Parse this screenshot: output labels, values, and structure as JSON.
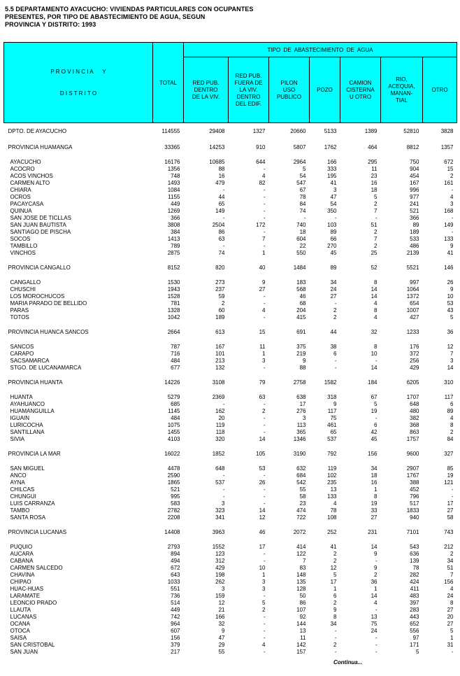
{
  "page": {
    "title_line1": "5.5   DEPARTAMENTO AYACUCHO: VIVIENDAS PARTICULARES CON OCUPANTES",
    "title_line2": "PRESENTES, POR TIPO DE ABASTECIMIENTO DE AGUA, SEGUN",
    "title_line3": "PROVINCIA Y DISTRITO: 1993",
    "continuation_note": "Continua..."
  },
  "table": {
    "header_bg_color": "#00FFFF",
    "header": {
      "row_label_line1": "P R O V I N C I A      Y",
      "row_label_line2": "D I S T R I T O",
      "total_label": "TOTAL",
      "group_label": "TIPO  DE  ABASTECIMIENTO  DE  AGUA",
      "cols": [
        "RED PUB.\nDENTRO\nDE LA VIV.",
        "RED PUB.\nFUERA DE\nLA VIV.\nDENTRO\nDEL EDIF.",
        "PILON\nUSO\nPUBLICO",
        "POZO",
        "CAMION\nCISTERNA\nU OTRO",
        "RIO,\nACEQUIA,\nMANAN-\nTIAL",
        "OTRO"
      ]
    },
    "rows": [
      {
        "type": "dept",
        "label": "DPTO. DE AYACUCHO",
        "values": [
          "114555",
          "29408",
          "1327",
          "20660",
          "5133",
          "1389",
          "52810",
          "3828"
        ]
      },
      {
        "type": "prov",
        "label": "PROVINCIA HUAMANGA",
        "values": [
          "33365",
          "14253",
          "910",
          "5807",
          "1762",
          "464",
          "8812",
          "1357"
        ]
      },
      {
        "type": "dist",
        "label": "AYACUCHO",
        "values": [
          "16176",
          "10685",
          "644",
          "2964",
          "166",
          "295",
          "750",
          "672"
        ]
      },
      {
        "type": "dist",
        "label": "ACOCRO",
        "values": [
          "1356",
          "88",
          "-",
          "5",
          "333",
          "11",
          "904",
          "15"
        ]
      },
      {
        "type": "dist",
        "label": "ACOS VINCHOS",
        "values": [
          "748",
          "16",
          "4",
          "54",
          "195",
          "23",
          "454",
          "2"
        ]
      },
      {
        "type": "dist",
        "label": "CARMEN ALTO",
        "values": [
          "1493",
          "479",
          "82",
          "547",
          "41",
          "16",
          "167",
          "161"
        ]
      },
      {
        "type": "dist",
        "label": "CHIARA",
        "values": [
          "1084",
          "-",
          "-",
          "67",
          "3",
          "18",
          "996",
          "-"
        ]
      },
      {
        "type": "dist",
        "label": "OCROS",
        "values": [
          "1155",
          "44",
          "-",
          "78",
          "47",
          "5",
          "977",
          "4"
        ]
      },
      {
        "type": "dist",
        "label": "PACAYCASA",
        "values": [
          "449",
          "65",
          "-",
          "84",
          "54",
          "2",
          "241",
          "3"
        ]
      },
      {
        "type": "dist",
        "label": "QUINUA",
        "values": [
          "1269",
          "149",
          "-",
          "74",
          "350",
          "7",
          "521",
          "168"
        ]
      },
      {
        "type": "dist",
        "label": "SAN JOSE DE TICLLAS",
        "values": [
          "366",
          "-",
          "-",
          "-",
          "-",
          "-",
          "366",
          "-"
        ]
      },
      {
        "type": "dist",
        "label": "SAN JUAN BAUTISTA",
        "values": [
          "3808",
          "2504",
          "172",
          "740",
          "103",
          "51",
          "89",
          "149"
        ]
      },
      {
        "type": "dist",
        "label": "SANTIAGO DE PISCHA",
        "values": [
          "384",
          "86",
          "-",
          "18",
          "89",
          "2",
          "189",
          "-"
        ]
      },
      {
        "type": "dist",
        "label": "SOCOS",
        "values": [
          "1413",
          "63",
          "7",
          "604",
          "66",
          "7",
          "533",
          "133"
        ]
      },
      {
        "type": "dist",
        "label": "TAMBILLO",
        "values": [
          "789",
          "-",
          "-",
          "22",
          "270",
          "2",
          "486",
          "9"
        ]
      },
      {
        "type": "dist",
        "label": "VINCHOS",
        "values": [
          "2875",
          "74",
          "1",
          "550",
          "45",
          "25",
          "2139",
          "41"
        ]
      },
      {
        "type": "prov",
        "label": "PROVINCIA CANGALLO",
        "values": [
          "8152",
          "820",
          "40",
          "1484",
          "89",
          "52",
          "5521",
          "146"
        ]
      },
      {
        "type": "dist",
        "label": "CANGALLO",
        "values": [
          "1530",
          "273",
          "9",
          "183",
          "34",
          "8",
          "997",
          "26"
        ]
      },
      {
        "type": "dist",
        "label": "CHUSCHI",
        "values": [
          "1943",
          "237",
          "27",
          "568",
          "24",
          "14",
          "1064",
          "9"
        ]
      },
      {
        "type": "dist",
        "label": "LOS MOROCHUCOS",
        "values": [
          "1528",
          "59",
          "-",
          "46",
          "27",
          "14",
          "1372",
          "10"
        ]
      },
      {
        "type": "dist",
        "label": "MARIA PARADO DE BELLIDO",
        "values": [
          "781",
          "2",
          "-",
          "68",
          "-",
          "4",
          "654",
          "53"
        ]
      },
      {
        "type": "dist",
        "label": "PARAS",
        "values": [
          "1328",
          "60",
          "4",
          "204",
          "2",
          "8",
          "1007",
          "43"
        ]
      },
      {
        "type": "dist",
        "label": "TOTOS",
        "values": [
          "1042",
          "189",
          "-",
          "415",
          "2",
          "4",
          "427",
          "5"
        ]
      },
      {
        "type": "prov",
        "label": "PROVINCIA HUANCA SANCOS",
        "values": [
          "2664",
          "613",
          "15",
          "691",
          "44",
          "32",
          "1233",
          "36"
        ]
      },
      {
        "type": "dist",
        "label": "SANCOS",
        "values": [
          "787",
          "167",
          "11",
          "375",
          "38",
          "8",
          "176",
          "12"
        ]
      },
      {
        "type": "dist",
        "label": "CARAPO",
        "values": [
          "716",
          "101",
          "1",
          "219",
          "6",
          "10",
          "372",
          "7"
        ]
      },
      {
        "type": "dist",
        "label": "SACSAMARCA",
        "values": [
          "484",
          "213",
          "3",
          "9",
          "-",
          "-",
          "256",
          "3"
        ]
      },
      {
        "type": "dist",
        "label": "STGO. DE LUCANAMARCA",
        "values": [
          "677",
          "132",
          "-",
          "88",
          "-",
          "14",
          "429",
          "14"
        ]
      },
      {
        "type": "prov",
        "label": "PROVINCIA HUANTA",
        "values": [
          "14226",
          "3108",
          "79",
          "2758",
          "1582",
          "184",
          "6205",
          "310"
        ]
      },
      {
        "type": "dist",
        "label": "HUANTA",
        "values": [
          "5279",
          "2369",
          "63",
          "638",
          "318",
          "67",
          "1707",
          "117"
        ]
      },
      {
        "type": "dist",
        "label": "AYAHUANCO",
        "values": [
          "685",
          "-",
          "-",
          "17",
          "9",
          "5",
          "648",
          "6"
        ]
      },
      {
        "type": "dist",
        "label": "HUAMANGUILLA",
        "values": [
          "1145",
          "162",
          "2",
          "276",
          "117",
          "19",
          "480",
          "89"
        ]
      },
      {
        "type": "dist",
        "label": "IGUAIN",
        "values": [
          "484",
          "20",
          "-",
          "3",
          "75",
          "-",
          "382",
          "4"
        ]
      },
      {
        "type": "dist",
        "label": "LURICOCHA",
        "values": [
          "1075",
          "119",
          "-",
          "113",
          "461",
          "6",
          "368",
          "8"
        ]
      },
      {
        "type": "dist",
        "label": "SANTILLANA",
        "values": [
          "1455",
          "118",
          "-",
          "365",
          "65",
          "42",
          "863",
          "2"
        ]
      },
      {
        "type": "dist",
        "label": "SIVIA",
        "values": [
          "4103",
          "320",
          "14",
          "1346",
          "537",
          "45",
          "1757",
          "84"
        ]
      },
      {
        "type": "prov",
        "label": "PROVINCIA LA MAR",
        "values": [
          "16022",
          "1852",
          "105",
          "3190",
          "792",
          "156",
          "9600",
          "327"
        ]
      },
      {
        "type": "dist",
        "label": "SAN MIGUEL",
        "values": [
          "4478",
          "648",
          "53",
          "632",
          "119",
          "34",
          "2907",
          "85"
        ]
      },
      {
        "type": "dist",
        "label": "ANCO",
        "values": [
          "2590",
          "-",
          "-",
          "684",
          "102",
          "18",
          "1767",
          "19"
        ]
      },
      {
        "type": "dist",
        "label": "AYNA",
        "values": [
          "1865",
          "537",
          "26",
          "542",
          "235",
          "16",
          "388",
          "121"
        ]
      },
      {
        "type": "dist",
        "label": "CHILCAS",
        "values": [
          "521",
          "-",
          "-",
          "55",
          "13",
          "1",
          "452",
          "-"
        ]
      },
      {
        "type": "dist",
        "label": "CHUNGUI",
        "values": [
          "995",
          "-",
          "-",
          "58",
          "133",
          "8",
          "796",
          "-"
        ]
      },
      {
        "type": "dist",
        "label": "LUIS CARRANZA",
        "values": [
          "583",
          "3",
          "-",
          "23",
          "4",
          "19",
          "517",
          "17"
        ]
      },
      {
        "type": "dist",
        "label": "TAMBO",
        "values": [
          "2782",
          "323",
          "14",
          "474",
          "78",
          "33",
          "1833",
          "27"
        ]
      },
      {
        "type": "dist",
        "label": "SANTA ROSA",
        "values": [
          "2208",
          "341",
          "12",
          "722",
          "108",
          "27",
          "940",
          "58"
        ]
      },
      {
        "type": "prov",
        "label": "PROVINCIA LUCANAS",
        "values": [
          "14408",
          "3963",
          "46",
          "2072",
          "252",
          "231",
          "7101",
          "743"
        ]
      },
      {
        "type": "dist",
        "label": "PUQUIO",
        "values": [
          "2793",
          "1552",
          "17",
          "414",
          "41",
          "14",
          "543",
          "212"
        ]
      },
      {
        "type": "dist",
        "label": "AUCARA",
        "values": [
          "894",
          "123",
          "-",
          "122",
          "2",
          "9",
          "636",
          "2"
        ]
      },
      {
        "type": "dist",
        "label": "CABANA",
        "values": [
          "494",
          "312",
          "-",
          "7",
          "2",
          "-",
          "139",
          "34"
        ]
      },
      {
        "type": "dist",
        "label": "CARMEN SALCEDO",
        "values": [
          "672",
          "429",
          "10",
          "83",
          "12",
          "9",
          "78",
          "51"
        ]
      },
      {
        "type": "dist",
        "label": "CHAVINA",
        "values": [
          "643",
          "198",
          "1",
          "148",
          "5",
          "2",
          "282",
          "7"
        ]
      },
      {
        "type": "dist",
        "label": "CHIPAO",
        "values": [
          "1033",
          "262",
          "3",
          "135",
          "17",
          "36",
          "424",
          "156"
        ]
      },
      {
        "type": "dist",
        "label": "HUAC-HUAS",
        "values": [
          "551",
          "3",
          "3",
          "128",
          "1",
          "1",
          "411",
          "4"
        ]
      },
      {
        "type": "dist",
        "label": "LARAMATE",
        "values": [
          "736",
          "159",
          "-",
          "50",
          "6",
          "14",
          "483",
          "24"
        ]
      },
      {
        "type": "dist",
        "label": "LEONCIO PRADO",
        "values": [
          "514",
          "12",
          "5",
          "86",
          "2",
          "4",
          "397",
          "8"
        ]
      },
      {
        "type": "dist",
        "label": "LLAUTA",
        "values": [
          "449",
          "21",
          "2",
          "107",
          "9",
          "-",
          "283",
          "27"
        ]
      },
      {
        "type": "dist",
        "label": "LUCANAS",
        "values": [
          "742",
          "166",
          "-",
          "92",
          "8",
          "13",
          "443",
          "20"
        ]
      },
      {
        "type": "dist",
        "label": "OCANA",
        "values": [
          "964",
          "32",
          "-",
          "144",
          "34",
          "75",
          "652",
          "27"
        ]
      },
      {
        "type": "dist",
        "label": "OTOCA",
        "values": [
          "607",
          "9",
          "-",
          "13",
          "-",
          "24",
          "556",
          "5"
        ]
      },
      {
        "type": "dist",
        "label": "SAISA",
        "values": [
          "156",
          "47",
          "-",
          "11",
          "-",
          "-",
          "97",
          "1"
        ]
      },
      {
        "type": "dist",
        "label": "SAN CRISTOBAL",
        "values": [
          "379",
          "29",
          "4",
          "142",
          "2",
          "-",
          "171",
          "31"
        ]
      },
      {
        "type": "dist",
        "label": "SAN JUAN",
        "values": [
          "217",
          "55",
          "-",
          "157",
          "-",
          "-",
          "5",
          "-"
        ]
      }
    ]
  }
}
